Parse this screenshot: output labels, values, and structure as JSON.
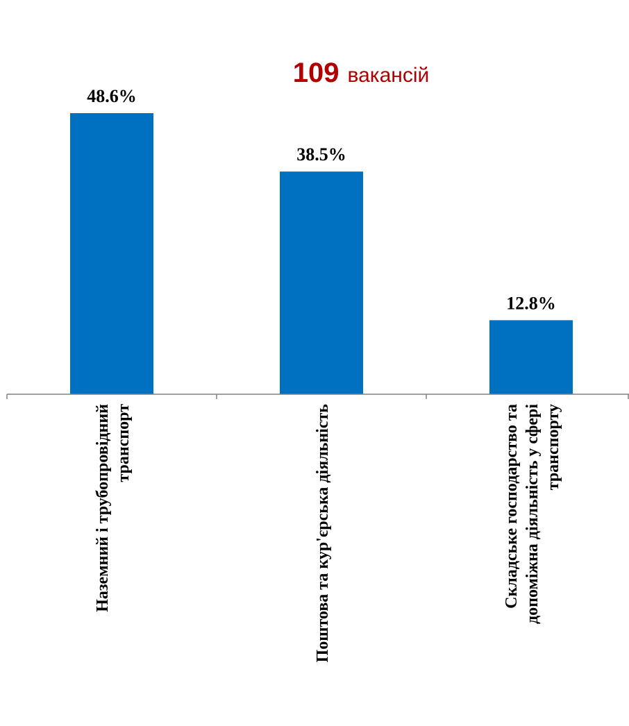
{
  "headline": {
    "count": "109",
    "word": "вакансій",
    "color": "#B00000"
  },
  "chart_data": {
    "type": "bar",
    "categories": [
      [
        "Наземний і трубопровідний",
        "транспорт"
      ],
      [
        "Поштова та кур'єрська діяльність"
      ],
      [
        "Складське господарство та",
        "допоміжна діяльність у сфері",
        "транспорту"
      ]
    ],
    "values": [
      48.6,
      38.5,
      12.8
    ],
    "value_labels": [
      "48.6%",
      "38.5%",
      "12.8%"
    ],
    "bar_color": "#0070C0",
    "axis_color": "#808080",
    "grid": false,
    "legend": "none"
  }
}
